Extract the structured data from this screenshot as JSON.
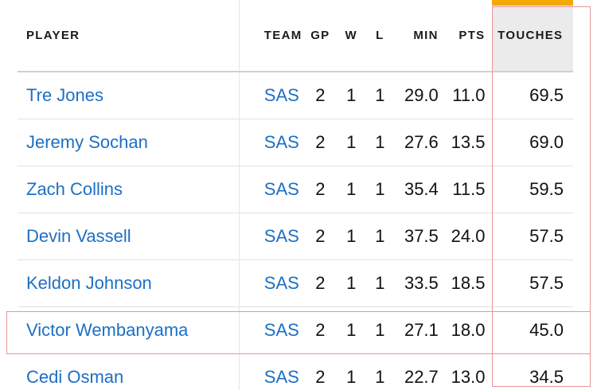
{
  "table": {
    "headers": {
      "player": "PLAYER",
      "team": "TEAM",
      "gp": "GP",
      "w": "W",
      "l": "L",
      "min": "MIN",
      "pts": "PTS",
      "touches": "TOUCHES"
    },
    "sorted_column": "TOUCHES",
    "rows": [
      {
        "player": "Tre Jones",
        "team": "SAS",
        "gp": "2",
        "w": "1",
        "l": "1",
        "min": "29.0",
        "pts": "11.0",
        "touches": "69.5"
      },
      {
        "player": "Jeremy Sochan",
        "team": "SAS",
        "gp": "2",
        "w": "1",
        "l": "1",
        "min": "27.6",
        "pts": "13.5",
        "touches": "69.0"
      },
      {
        "player": "Zach Collins",
        "team": "SAS",
        "gp": "2",
        "w": "1",
        "l": "1",
        "min": "35.4",
        "pts": "11.5",
        "touches": "59.5"
      },
      {
        "player": "Devin Vassell",
        "team": "SAS",
        "gp": "2",
        "w": "1",
        "l": "1",
        "min": "37.5",
        "pts": "24.0",
        "touches": "57.5"
      },
      {
        "player": "Keldon Johnson",
        "team": "SAS",
        "gp": "2",
        "w": "1",
        "l": "1",
        "min": "33.5",
        "pts": "18.5",
        "touches": "57.5"
      },
      {
        "player": "Victor Wembanyama",
        "team": "SAS",
        "gp": "2",
        "w": "1",
        "l": "1",
        "min": "27.1",
        "pts": "18.0",
        "touches": "45.0"
      },
      {
        "player": "Cedi Osman",
        "team": "SAS",
        "gp": "2",
        "w": "1",
        "l": "1",
        "min": "22.7",
        "pts": "13.0",
        "touches": "34.5"
      }
    ]
  },
  "colors": {
    "link": "#1d6fc5",
    "sort_accent": "#f2a900",
    "sorted_header_bg": "#ebebeb",
    "highlight_outline": "#e8959b"
  }
}
